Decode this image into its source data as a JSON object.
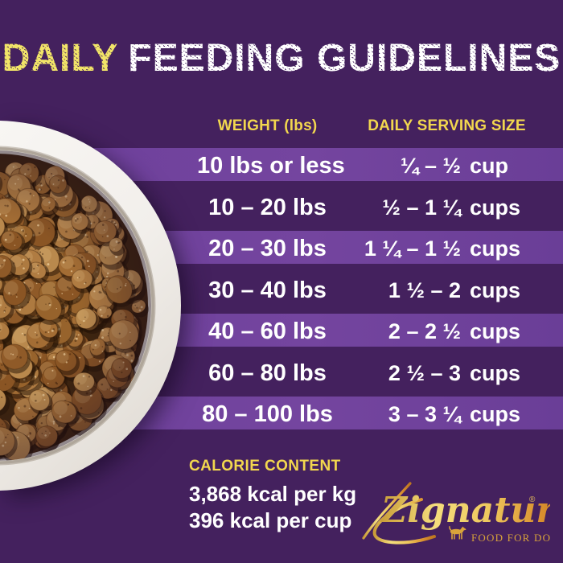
{
  "title": {
    "daily": "DAILY",
    "rest": "FEEDING GUIDELINES"
  },
  "table": {
    "headers": {
      "weight": "WEIGHT (lbs)",
      "serving": "DAILY SERVING SIZE"
    },
    "rows": [
      {
        "weight": "10 lbs or less",
        "range": "¼ – ½",
        "unit": "cup",
        "highlight": true
      },
      {
        "weight": "10 – 20 lbs",
        "range": "½ – 1 ¼",
        "unit": "cups",
        "highlight": false
      },
      {
        "weight": "20 – 30 lbs",
        "range": "1 ¼ – 1 ½",
        "unit": "cups",
        "highlight": true
      },
      {
        "weight": "30 – 40 lbs",
        "range": "1 ½ – 2",
        "unit": "cups",
        "highlight": false
      },
      {
        "weight": "40 – 60 lbs",
        "range": "2 – 2 ½",
        "unit": "cups",
        "highlight": true
      },
      {
        "weight": "60 – 80 lbs",
        "range": "2 ½ – 3",
        "unit": "cups",
        "highlight": false
      },
      {
        "weight": "80 – 100 lbs",
        "range": "3 – 3 ¼",
        "unit": "cups",
        "highlight": true
      }
    ]
  },
  "calorie": {
    "heading": "CALORIE CONTENT",
    "kcal_per_kg": "3,868 kcal per kg",
    "kcal_per_cup": "396 kcal per cup"
  },
  "logo": {
    "brand": "Zignature",
    "registered": "®",
    "tagline": "FOOD FOR DOGS"
  },
  "colors": {
    "background": "#44215e",
    "highlight_band": "#6f429d",
    "title_yellow": "#f1e468",
    "heading_yellow": "#f2d74e",
    "text_white": "#ffffff",
    "logo_gold": "#d9a43a",
    "kibble_brown": "#9a672f",
    "bowl_white": "#f3f1ee"
  },
  "chart_data": {
    "type": "table",
    "title": "DAILY FEEDING GUIDELINES",
    "columns": [
      "WEIGHT (lbs)",
      "DAILY SERVING SIZE"
    ],
    "rows": [
      [
        "10 lbs or less",
        "¼ – ½ cup"
      ],
      [
        "10 – 20 lbs",
        "½ – 1 ¼ cups"
      ],
      [
        "20 – 30 lbs",
        "1 ¼ – 1 ½ cups"
      ],
      [
        "30 – 40 lbs",
        "1 ½ – 2 cups"
      ],
      [
        "40 – 60 lbs",
        "2 – 2 ½ cups"
      ],
      [
        "60 – 80 lbs",
        "2 ½ – 3 cups"
      ],
      [
        "80 – 100 lbs",
        "3 – 3 ¼ cups"
      ]
    ],
    "notes": [
      "CALORIE CONTENT",
      "3,868 kcal per kg",
      "396 kcal per cup"
    ]
  }
}
